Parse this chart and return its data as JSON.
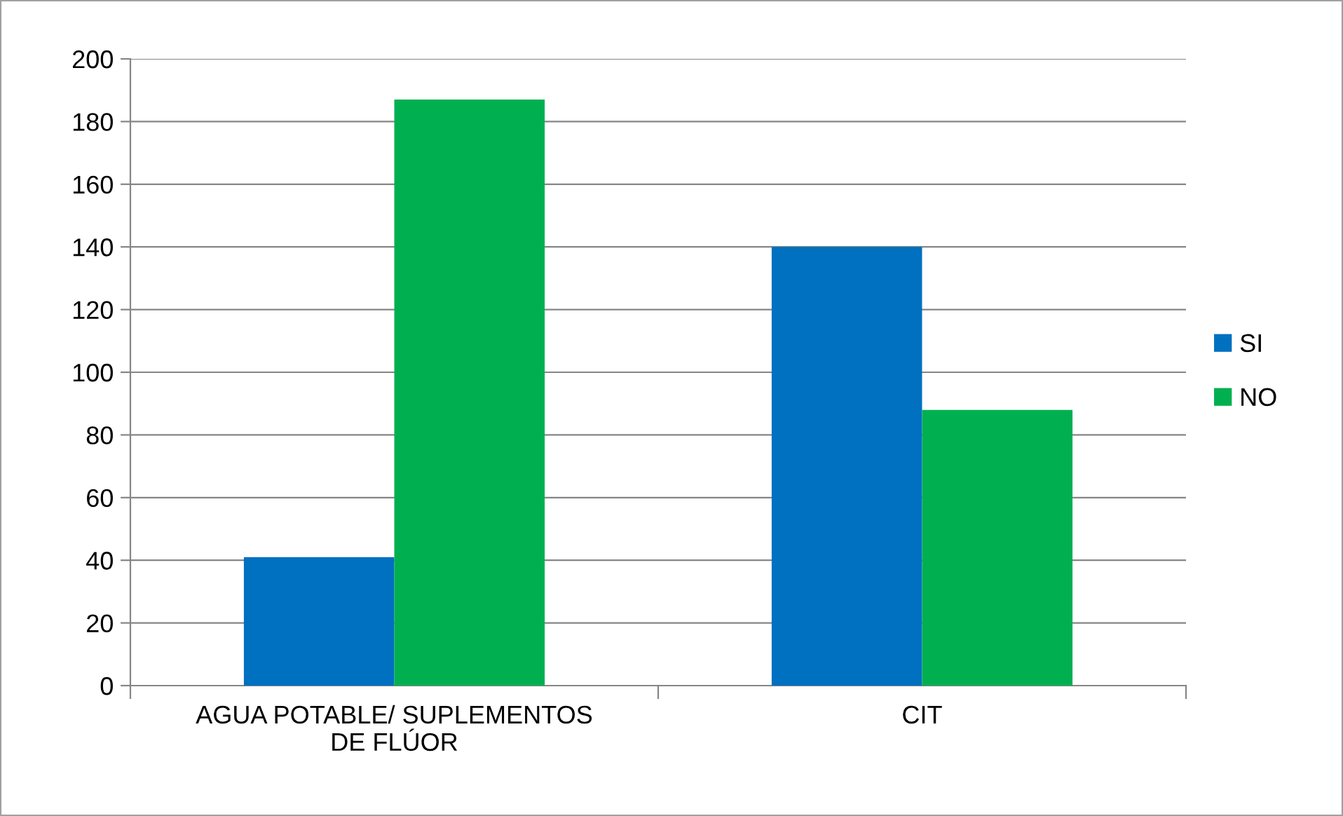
{
  "chart_data": {
    "type": "bar",
    "categories": [
      "AGUA POTABLE/ SUPLEMENTOS\nDE FLÚOR",
      "CIT"
    ],
    "series": [
      {
        "name": "SI",
        "color": "#0070c0",
        "values": [
          41,
          140
        ]
      },
      {
        "name": "NO",
        "color": "#00b050",
        "values": [
          187,
          88
        ]
      }
    ],
    "ylim": [
      0,
      200
    ],
    "yticks": [
      0,
      20,
      40,
      60,
      80,
      100,
      120,
      140,
      160,
      180,
      200
    ],
    "grid": "y",
    "legend": "right"
  }
}
